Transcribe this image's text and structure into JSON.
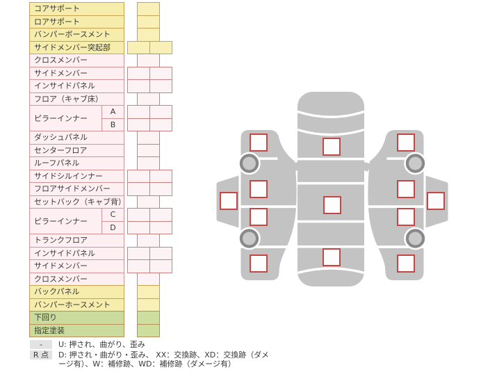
{
  "theme": {
    "text": "#383838",
    "badge-bg": "#e3e3e3",
    "yellow-fill": "#f6ecac",
    "yellow-cell-fill": "#f8f0b6",
    "yellow-border": "#c7a254",
    "pink-fill": "#fdeff2",
    "pink-cell-fill": "#fdf2f4",
    "pink-border": "#d59494",
    "pink-cell-border": "#cd7f7f",
    "green-fill": "#cbdb9d",
    "green-cell-fill": "#cede9f",
    "green-border": "#b98f55",
    "body-gray": "#c3c3c3",
    "wheel-ring": "#898989",
    "wheel-hub": "#c9c9c9",
    "chk-border": "#c64545",
    "chk-fill": "#fdfdfd"
  },
  "parts_table": {
    "rows": [
      {
        "label": "コアサポート",
        "color": "yellow",
        "cols": 1
      },
      {
        "label": "ロアサポート",
        "color": "yellow",
        "cols": 1
      },
      {
        "label": "バンパーボースメント",
        "color": "yellow",
        "cols": 1
      },
      {
        "label": "サイドメンバー突起部",
        "color": "yellow",
        "cols": 2
      },
      {
        "label": "クロスメンバー",
        "color": "pink",
        "cols": 1
      },
      {
        "label": "サイドメンバー",
        "color": "pink",
        "cols": 2
      },
      {
        "label": "インサイドパネル",
        "color": "pink",
        "cols": 2
      },
      {
        "label": "フロア（キャブ床）",
        "color": "pink",
        "cols": 1
      },
      {
        "label": "ピラーインナー",
        "color": "pink",
        "subs": [
          {
            "label": "A",
            "cols": 2
          },
          {
            "label": "B",
            "cols": 2
          }
        ]
      },
      {
        "label": "ダッシュパネル",
        "color": "pink",
        "cols": 1
      },
      {
        "label": "センターフロア",
        "color": "pink",
        "cols": 1
      },
      {
        "label": "ルーフパネル",
        "color": "pink",
        "cols": 1
      },
      {
        "label": "サイドシルインナー",
        "color": "pink",
        "cols": 2
      },
      {
        "label": "フロアサイドメンバー",
        "color": "pink",
        "cols": 2
      },
      {
        "label": "セットバック（キャブ背）",
        "color": "pink",
        "cols": 1
      },
      {
        "label": "ピラーインナー",
        "color": "pink",
        "subs": [
          {
            "label": "C",
            "cols": 2
          },
          {
            "label": "D",
            "cols": 2
          }
        ]
      },
      {
        "label": "トランクフロア",
        "color": "pink",
        "cols": 1
      },
      {
        "label": "インサイドパネル",
        "color": "pink",
        "cols": 2
      },
      {
        "label": "サイドメンバー",
        "color": "pink",
        "cols": 2
      },
      {
        "label": "クロスメンバー",
        "color": "pink",
        "cols": 1
      },
      {
        "label": "バックパネル",
        "color": "yellow",
        "cols": 1
      },
      {
        "label": "バンパーホースメント",
        "color": "yellow",
        "cols": 1
      },
      {
        "label": "下回り",
        "color": "green",
        "cols": 1
      },
      {
        "label": "指定塗装",
        "color": "green",
        "cols": 1
      }
    ]
  },
  "legend": {
    "items": [
      {
        "badge": "-",
        "text": "U: 押され、曲がり、歪み"
      },
      {
        "badge": "R 点",
        "text": "D: 押され・曲がり・歪み、 XX：交換跡、XD：交換跡（ダメージ有）、W：補修跡、WD：補修跡（ダメージ有）"
      }
    ]
  },
  "diagram": {
    "checkboxes": {
      "left_side": [
        "front-fender",
        "front-door",
        "rocker-panel",
        "rear-door",
        "rear-fender"
      ],
      "top_view": [
        "cowl",
        "roof",
        "rear-deck"
      ],
      "right_side": [
        "front-fender",
        "front-door",
        "rocker-panel",
        "rear-door",
        "rear-fender"
      ]
    }
  }
}
